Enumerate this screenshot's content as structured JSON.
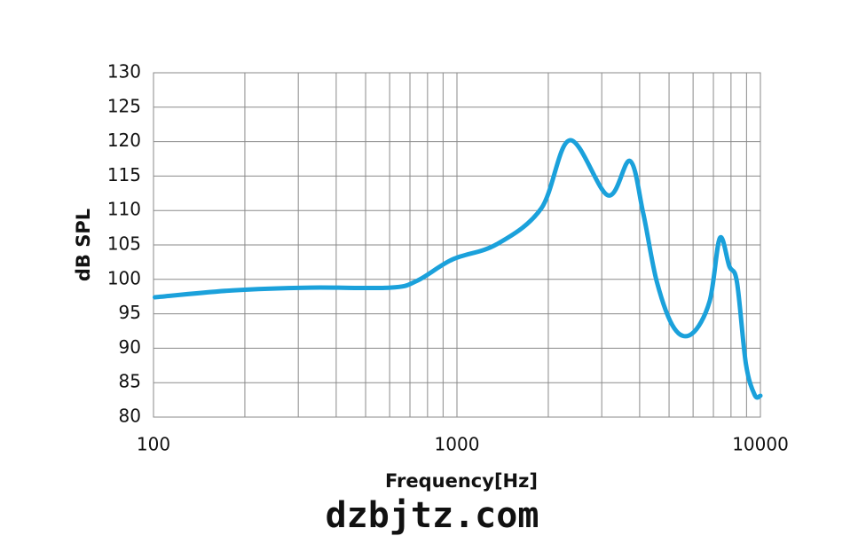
{
  "chart_data": {
    "type": "line",
    "xlabel": "Frequency[Hz]",
    "ylabel": "dB SPL",
    "x": [
      101,
      182,
      329,
      603,
      739,
      967,
      1353,
      1896,
      2354,
      3145,
      3715,
      4110,
      4560,
      5200,
      5945,
      6800,
      7350,
      7900,
      8370,
      8960,
      9580,
      10000
    ],
    "series": [
      {
        "color": "#1ba1db",
        "values": [
          97.4,
          98.4,
          98.8,
          98.8,
          99.8,
          102.9,
          105.1,
          110.3,
          120.2,
          112.2,
          117.2,
          109.6,
          99.6,
          92.9,
          92.1,
          96.8,
          106.0,
          101.9,
          99.6,
          87.7,
          83.2,
          83.1
        ]
      }
    ],
    "xscale": "log",
    "xlim": [
      100,
      10000
    ],
    "xticks": [
      100,
      1000,
      10000
    ],
    "xminor": [
      200,
      300,
      400,
      500,
      600,
      700,
      800,
      900,
      2000,
      3000,
      4000,
      5000,
      6000,
      7000,
      8000,
      9000
    ],
    "ylim": [
      80,
      130
    ],
    "yticks": [
      80,
      85,
      90,
      95,
      100,
      105,
      110,
      115,
      120,
      125,
      130
    ],
    "grid": true
  },
  "watermark": "dzbjtz.com"
}
